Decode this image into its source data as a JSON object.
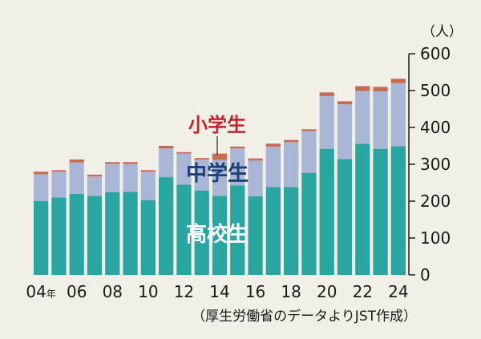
{
  "chart_data": {
    "type": "bar",
    "stacked": true,
    "categories": [
      "04",
      "05",
      "06",
      "07",
      "08",
      "09",
      "10",
      "11",
      "12",
      "13",
      "14",
      "15",
      "16",
      "17",
      "18",
      "19",
      "20",
      "21",
      "22",
      "23",
      "24"
    ],
    "x_tick_labels": [
      "04年",
      "06",
      "08",
      "10",
      "12",
      "14",
      "16",
      "18",
      "20",
      "22",
      "24"
    ],
    "series": [
      {
        "name": "高校生",
        "color": "#2aa6a2",
        "values": [
          200,
          210,
          220,
          214,
          224,
          225,
          203,
          265,
          245,
          229,
          214,
          243,
          213,
          238,
          238,
          277,
          342,
          314,
          356,
          342,
          349
        ]
      },
      {
        "name": "中学生",
        "color": "#a9b6d5",
        "values": [
          73,
          70,
          85,
          53,
          77,
          76,
          77,
          78,
          84,
          84,
          98,
          100,
          97,
          110,
          122,
          113,
          143,
          149,
          143,
          156,
          171
        ]
      },
      {
        "name": "小学生",
        "color": "#c86a55",
        "values": [
          7,
          4,
          8,
          5,
          5,
          5,
          4,
          7,
          4,
          4,
          17,
          5,
          6,
          8,
          6,
          5,
          10,
          8,
          13,
          12,
          12
        ]
      }
    ],
    "ylabel": "人",
    "ylim": [
      0,
      600
    ],
    "y_ticks": [
      "0",
      "100",
      "200",
      "300",
      "400",
      "500",
      "600"
    ],
    "grid": false,
    "unit_label": "（人）",
    "source": "（厚生労働省のデータよりJST作成）"
  }
}
